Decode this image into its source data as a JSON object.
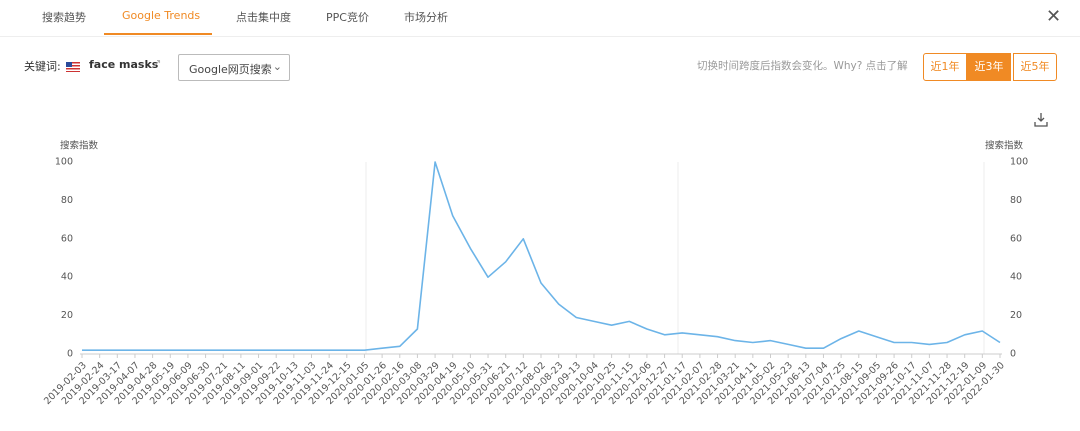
{
  "tabs": [
    "搜索趋势",
    "Google Trends",
    "点击集中度",
    "PPC竞价",
    "市场分析"
  ],
  "keyword_label": "关键词:",
  "keyword": "face masks",
  "search_select": "Google网页搜索",
  "hint": "切换时间跨度后指数会变化。Why? 点击了解",
  "range_buttons": [
    "近1年",
    "近3年",
    "近5年"
  ],
  "chart_data": {
    "type": "line",
    "y_label": "搜索指数",
    "y2_label": "搜索指数",
    "categories": [
      "2019-02-03",
      "2019-02-24",
      "2019-03-17",
      "2019-04-07",
      "2019-04-28",
      "2019-05-19",
      "2019-06-09",
      "2019-06-30",
      "2019-07-21",
      "2019-08-11",
      "2019-09-01",
      "2019-09-22",
      "2019-10-13",
      "2019-11-03",
      "2019-11-24",
      "2019-12-15",
      "2020-01-05",
      "2020-01-26",
      "2020-02-16",
      "2020-03-08",
      "2020-03-29",
      "2020-04-19",
      "2020-05-10",
      "2020-05-31",
      "2020-06-21",
      "2020-07-12",
      "2020-08-02",
      "2020-08-23",
      "2020-09-13",
      "2020-10-04",
      "2020-10-25",
      "2020-11-15",
      "2020-12-06",
      "2020-12-27",
      "2021-01-17",
      "2021-02-07",
      "2021-02-28",
      "2021-03-21",
      "2021-04-11",
      "2021-05-02",
      "2021-05-23",
      "2021-06-13",
      "2021-07-04",
      "2021-07-25",
      "2021-08-15",
      "2021-09-05",
      "2021-09-26",
      "2021-10-17",
      "2021-11-07",
      "2021-11-28",
      "2021-12-19",
      "2022-01-09",
      "2022-01-30"
    ],
    "values": [
      2,
      2,
      2,
      2,
      2,
      2,
      2,
      2,
      2,
      2,
      2,
      2,
      2,
      2,
      2,
      2,
      2,
      3,
      4,
      13,
      100,
      72,
      55,
      40,
      48,
      60,
      37,
      26,
      19,
      17,
      15,
      17,
      13,
      10,
      11,
      10,
      9,
      7,
      6,
      7,
      5,
      3,
      3,
      8,
      12,
      9,
      6,
      6,
      5,
      6,
      10,
      12,
      6
    ],
    "color": "#6cb4e8",
    "ylim": [
      0,
      100
    ],
    "yticks": [
      0,
      20,
      40,
      60,
      80,
      100
    ],
    "grid": false
  }
}
